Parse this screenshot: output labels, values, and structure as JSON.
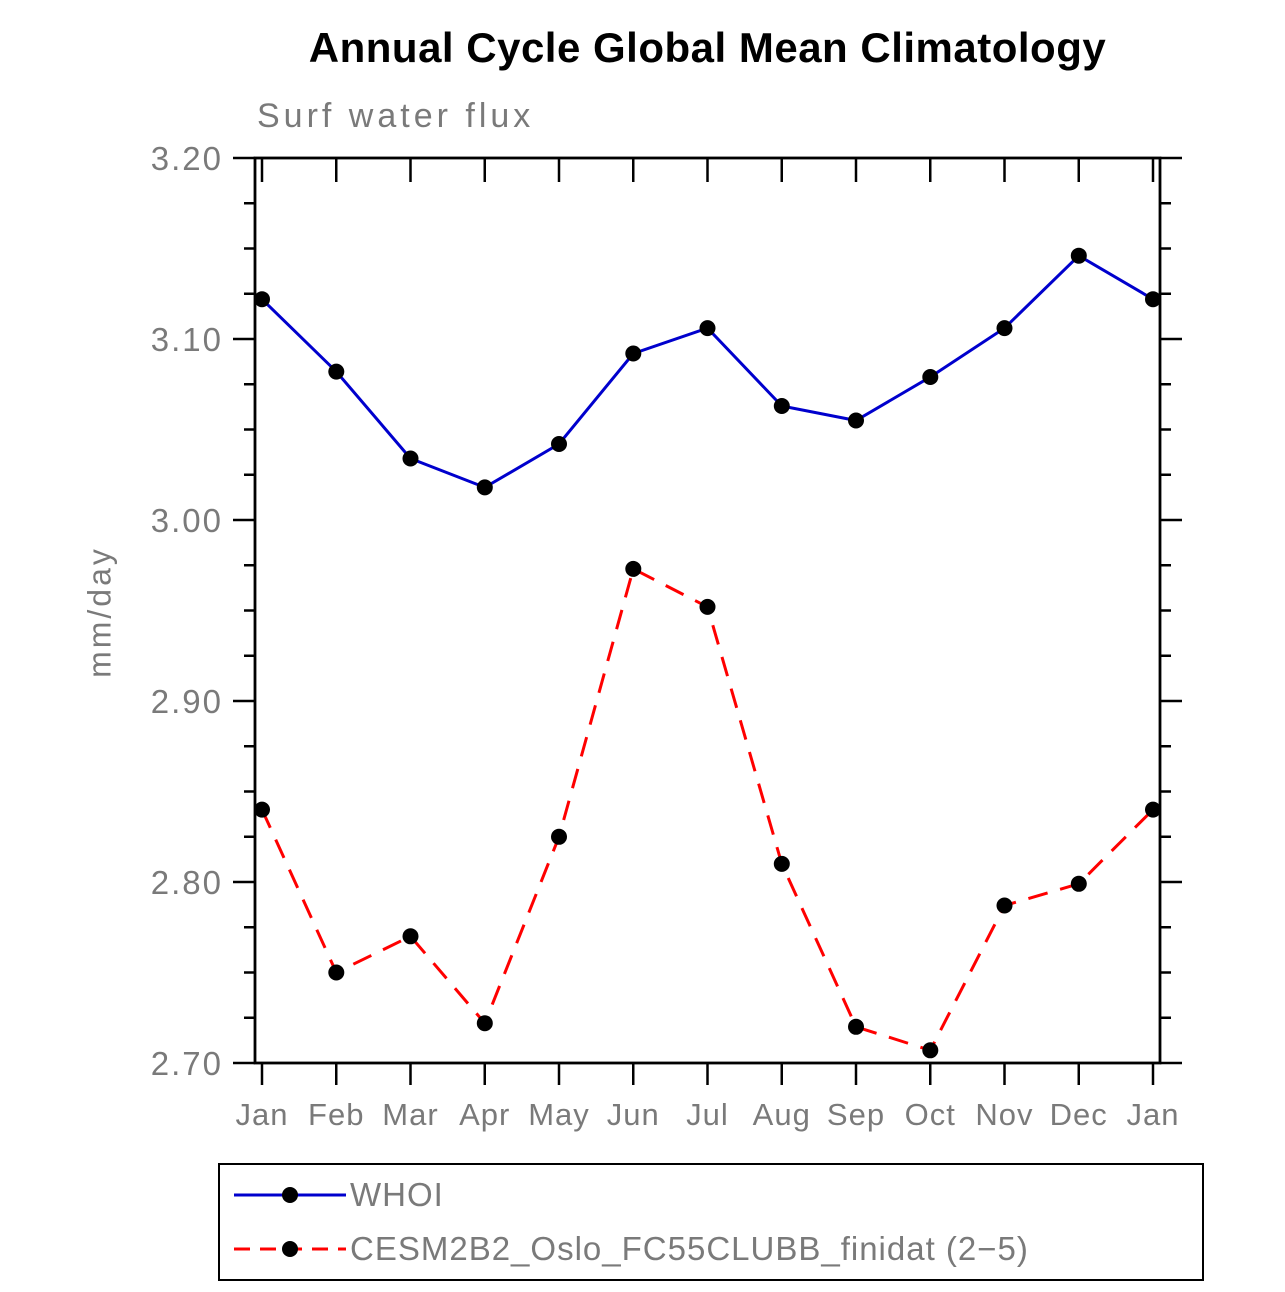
{
  "chart_data": {
    "type": "line",
    "title": "Annual Cycle Global Mean Climatology",
    "subtitle": "Surf water flux",
    "xlabel": "",
    "ylabel": "mm/day",
    "categories": [
      "Jan",
      "Feb",
      "Mar",
      "Apr",
      "May",
      "Jun",
      "Jul",
      "Aug",
      "Sep",
      "Oct",
      "Nov",
      "Dec",
      "Jan"
    ],
    "ylim": [
      2.7,
      3.2
    ],
    "ytick_step": 0.1,
    "ytick_minor_step": 0.025,
    "ytick_labels": [
      "2.70",
      "2.80",
      "2.90",
      "3.00",
      "3.10",
      "3.20"
    ],
    "grid": false,
    "legend_position": "bottom",
    "series": [
      {
        "name": "WHOI",
        "color": "#0000cd",
        "line_style": "solid",
        "marker": "circle",
        "marker_color": "#000000",
        "values": [
          3.122,
          3.082,
          3.034,
          3.018,
          3.042,
          3.092,
          3.106,
          3.063,
          3.055,
          3.079,
          3.106,
          3.146,
          3.122
        ]
      },
      {
        "name": "CESM2B2_Oslo_FC55CLUBB_finidat (2−5)",
        "color": "#ff0000",
        "line_style": "dashed",
        "marker": "circle",
        "marker_color": "#000000",
        "values": [
          2.84,
          2.75,
          2.77,
          2.722,
          2.825,
          2.973,
          2.952,
          2.81,
          2.72,
          2.707,
          2.787,
          2.799,
          2.84
        ]
      }
    ]
  },
  "colors": {
    "frame": "#000000",
    "label_gray": "#7a7a7a",
    "background": "#ffffff"
  }
}
